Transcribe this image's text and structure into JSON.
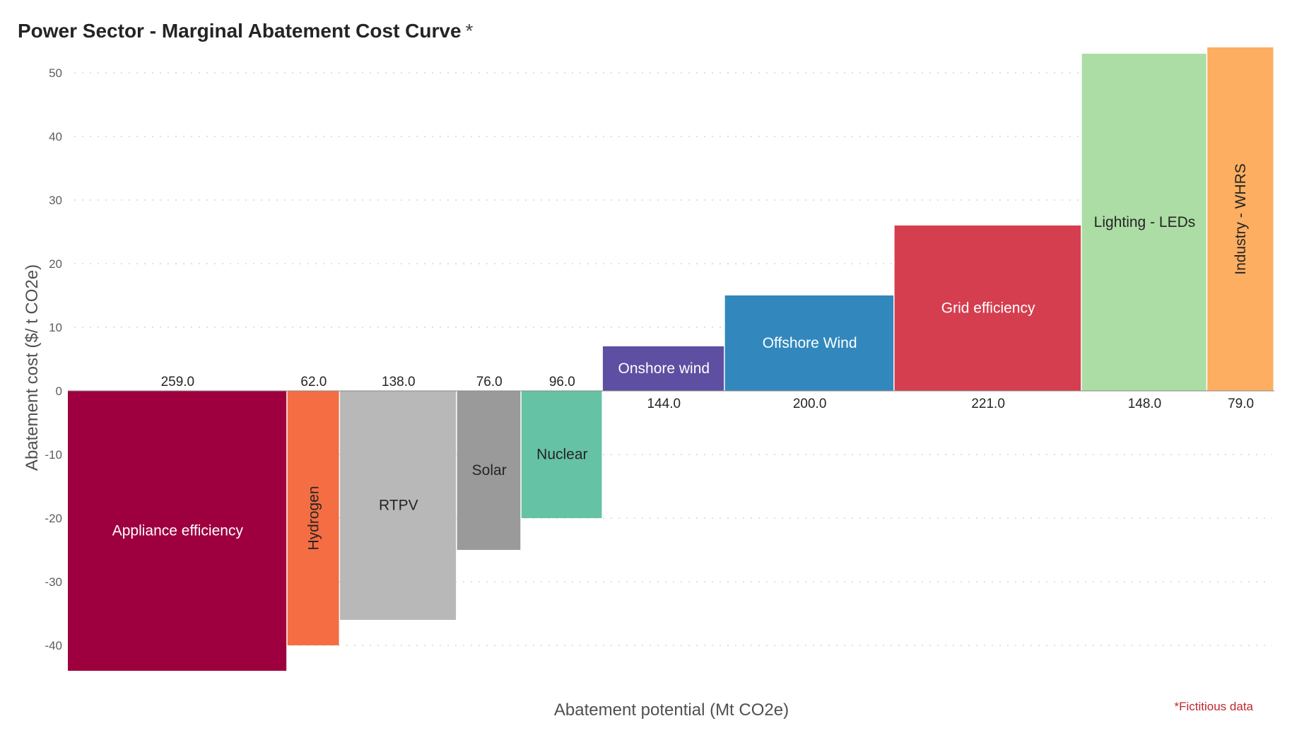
{
  "chart_data": {
    "type": "bar",
    "variant": "marginal-abatement-cost-curve",
    "title": "Power Sector - Marginal Abatement Cost Curve",
    "title_marker": "*",
    "xlabel": "Abatement potential (Mt CO2e)",
    "ylabel": "Abatement cost ($/ t CO2e)",
    "ylim": [
      -44,
      54
    ],
    "yticks": [
      50,
      40,
      30,
      20,
      10,
      0,
      -10,
      -20,
      -30,
      -40
    ],
    "grid": true,
    "footnote": "*Fictitious data",
    "series": [
      {
        "name": "Appliance efficiency",
        "potential": 259.0,
        "potential_label": "259.0",
        "cost": -44,
        "color": "#9e003f",
        "label_color": "#ffffff",
        "label_orientation": "horizontal"
      },
      {
        "name": "Hydrogen",
        "potential": 62.0,
        "potential_label": "62.0",
        "cost": -40,
        "color": "#f46d43",
        "label_color": "#252423",
        "label_orientation": "vertical"
      },
      {
        "name": "RTPV",
        "potential": 138.0,
        "potential_label": "138.0",
        "cost": -36,
        "color": "#b8b8b8",
        "label_color": "#252423",
        "label_orientation": "horizontal"
      },
      {
        "name": "Solar",
        "potential": 76.0,
        "potential_label": "76.0",
        "cost": -25,
        "color": "#9a9a9a",
        "label_color": "#252423",
        "label_orientation": "horizontal"
      },
      {
        "name": "Nuclear",
        "potential": 96.0,
        "potential_label": "96.0",
        "cost": -20,
        "color": "#66c2a5",
        "label_color": "#252423",
        "label_orientation": "horizontal"
      },
      {
        "name": "Onshore wind",
        "potential": 144.0,
        "potential_label": "144.0",
        "cost": 7,
        "color": "#5e4fa2",
        "label_color": "#ffffff",
        "label_orientation": "horizontal"
      },
      {
        "name": "Offshore Wind",
        "potential": 200.0,
        "potential_label": "200.0",
        "cost": 15,
        "color": "#3288bd",
        "label_color": "#ffffff",
        "label_orientation": "horizontal"
      },
      {
        "name": "Grid efficiency",
        "potential": 221.0,
        "potential_label": "221.0",
        "cost": 26,
        "color": "#d53e4f",
        "label_color": "#ffffff",
        "label_orientation": "horizontal"
      },
      {
        "name": "Lighting - LEDs",
        "potential": 148.0,
        "potential_label": "148.0",
        "cost": 53,
        "color": "#abdda4",
        "label_color": "#252423",
        "label_orientation": "horizontal"
      },
      {
        "name": "Industry - WHRS",
        "potential": 79.0,
        "potential_label": "79.0",
        "cost": 54,
        "color": "#fdae61",
        "label_color": "#252423",
        "label_orientation": "vertical"
      }
    ]
  }
}
